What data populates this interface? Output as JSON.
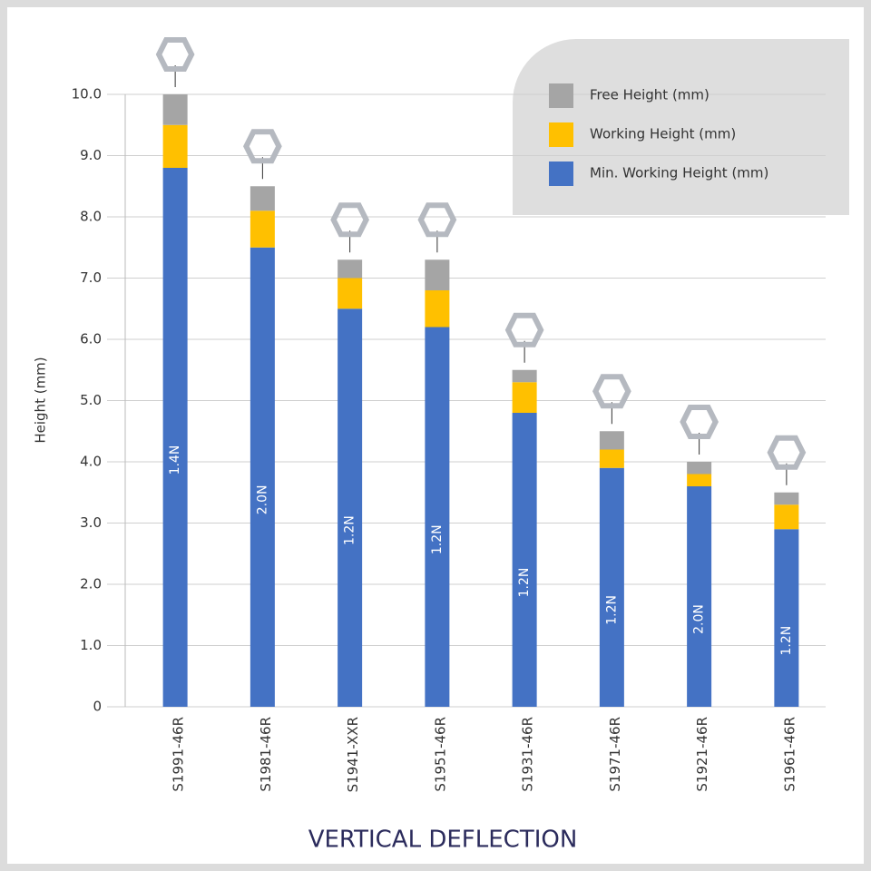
{
  "chart_data": {
    "type": "stacked_bar",
    "xlabel": "VERTICAL DEFLECTION",
    "ylabel": "Height (mm)",
    "categories": [
      "S1991-46R",
      "S1981-46R",
      "S1941-XXR",
      "S1951-46R",
      "S1931-46R",
      "S1971-46R",
      "S1921-46R",
      "S1961-46R"
    ],
    "series": [
      {
        "name": "Min. Working Height (mm)",
        "color": "#4472c4",
        "values": [
          8.8,
          7.5,
          6.5,
          6.2,
          4.8,
          3.9,
          3.6,
          2.9
        ]
      },
      {
        "name": "Working Height (mm)",
        "color": "#ffc000",
        "values": [
          0.7,
          0.6,
          0.5,
          0.6,
          0.5,
          0.3,
          0.2,
          0.4
        ]
      },
      {
        "name": "Free Height (mm)",
        "color": "#a5a5a5",
        "values": [
          0.5,
          0.4,
          0.3,
          0.5,
          0.2,
          0.3,
          0.2,
          0.2
        ]
      }
    ],
    "bar_labels": [
      "1.4N",
      "2.0N",
      "1.2N",
      "1.2N",
      "1.2N",
      "1.2N",
      "2.0N",
      "1.2N"
    ],
    "ylim": [
      0,
      10
    ],
    "yticks": [
      0,
      {
        "value": 1,
        "label": "1.0"
      },
      {
        "value": 2,
        "label": "2.0"
      },
      {
        "value": 3,
        "label": "3.0"
      },
      {
        "value": 4,
        "label": "4.0"
      },
      {
        "value": 5,
        "label": "5.0"
      },
      {
        "value": 6,
        "label": "6.0"
      },
      {
        "value": 7,
        "label": "7.0"
      },
      {
        "value": 8,
        "label": "8.0"
      },
      {
        "value": 9,
        "label": "9.0"
      },
      {
        "value": 10,
        "label": "10.0"
      }
    ],
    "grid": true,
    "legend": "top-right"
  }
}
